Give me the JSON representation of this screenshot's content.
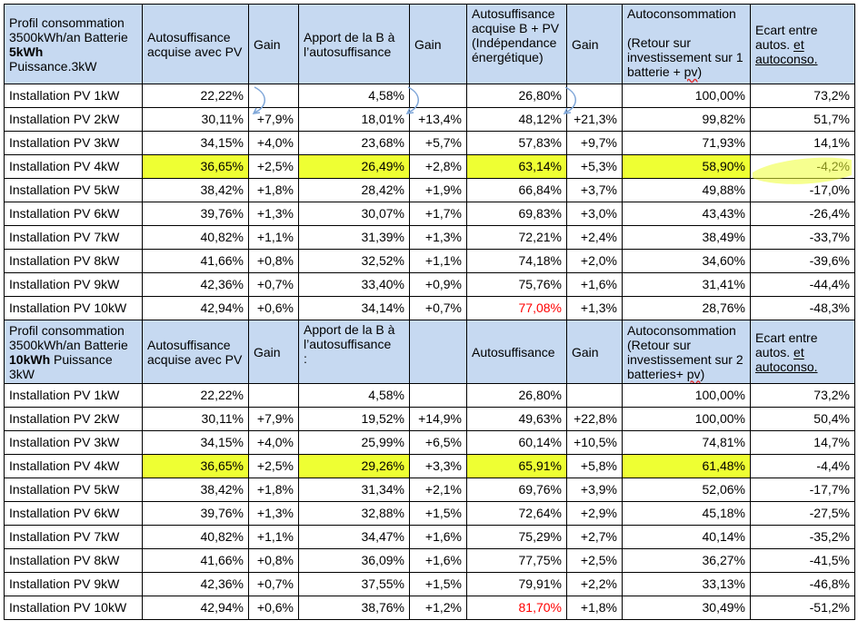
{
  "colors": {
    "header_bg": "#c6d9f1",
    "highlight": "#eeff33",
    "red": "#ff0000"
  },
  "section1": {
    "header": {
      "profile_line1": "Profil consommation",
      "profile_line2": "3500kWh/an Batterie",
      "profile_battery": "5kWh",
      "profile_power": "Puissance.3kW",
      "col_autosuff": "Autosuffisance acquise avec PV",
      "col_gain": "Gain",
      "col_apport": "Apport de la B à l’autosuffisance",
      "col_gain2": "Gain",
      "col_autosuff_bpv": "Autosuffisance acquise B + PV (Indépendance énergétique)",
      "col_gain3": "Gain",
      "col_autoconso_title": "Autoconsommation",
      "col_autoconso_sub1": "(Retour sur investissement sur 1 batterie + ",
      "col_autoconso_sub2": "pv",
      "col_autoconso_sub3": ")",
      "col_ecart1": "Ecart entre autos. ",
      "col_ecart2": "et",
      "col_ecart3": " autoconso."
    },
    "rows": [
      [
        "Installation PV 1kW",
        "22,22%",
        "",
        "4,58%",
        "",
        "26,80%",
        "",
        "100,00%",
        "73,2%"
      ],
      [
        "Installation PV 2kW",
        "30,11%",
        "+7,9%",
        "18,01%",
        "+13,4%",
        "48,12%",
        "+21,3%",
        "99,82%",
        "51,7%"
      ],
      [
        "Installation PV 3kW",
        "34,15%",
        "+4,0%",
        "23,68%",
        "+5,7%",
        "57,83%",
        "+9,7%",
        "71,93%",
        "14,1%"
      ],
      [
        "Installation PV 4kW",
        "36,65%",
        "+2,5%",
        "26,49%",
        "+2,8%",
        "63,14%",
        "+5,3%",
        "58,90%",
        "-4,2%"
      ],
      [
        "Installation PV 5kW",
        "38,42%",
        "+1,8%",
        "28,42%",
        "+1,9%",
        "66,84%",
        "+3,7%",
        "49,88%",
        "-17,0%"
      ],
      [
        "Installation PV 6kW",
        "39,76%",
        "+1,3%",
        "30,07%",
        "+1,7%",
        "69,83%",
        "+3,0%",
        "43,43%",
        "-26,4%"
      ],
      [
        "Installation PV 7kW",
        "40,82%",
        "+1,1%",
        "31,39%",
        "+1,3%",
        "72,21%",
        "+2,4%",
        "38,49%",
        "-33,7%"
      ],
      [
        "Installation PV 8kW",
        "41,66%",
        "+0,8%",
        "32,52%",
        "+1,1%",
        "74,18%",
        "+2,0%",
        "34,60%",
        "-39,6%"
      ],
      [
        "Installation PV 9kW",
        "42,36%",
        "+0,7%",
        "33,40%",
        "+0,9%",
        "75,76%",
        "+1,6%",
        "31,41%",
        "-44,4%"
      ],
      [
        "Installation PV 10kW",
        "42,94%",
        "+0,6%",
        "34,14%",
        "+0,7%",
        "77,08%",
        "+1,3%",
        "28,76%",
        "-48,3%"
      ]
    ]
  },
  "section2": {
    "header": {
      "profile_line1": "Profil consommation",
      "profile_line2": "3500kWh/an Batterie",
      "profile_battery": "10kWh",
      "profile_power": " Puissance 3kW",
      "col_autosuff": "Autosuffisance acquise avec PV",
      "col_gain": "Gain",
      "col_apport": "Apport de la B à l’autosuffisance",
      "col_apport_mark": ":",
      "col_autosuff_b": "Autosuffisance",
      "col_gain3": "Gain",
      "col_autoconso_title": "Autoconsommation",
      "col_autoconso_sub1": "(Retour sur investissement sur 2 batteries+ ",
      "col_autoconso_sub2": "pv",
      "col_autoconso_sub3": ")",
      "col_ecart1": "Ecart entre autos. ",
      "col_ecart2": "et",
      "col_ecart3": " autoconso."
    },
    "rows": [
      [
        "Installation PV 1kW",
        "22,22%",
        "",
        "4,58%",
        "",
        "26,80%",
        "",
        "100,00%",
        "73,2%"
      ],
      [
        "Installation PV 2kW",
        "30,11%",
        "+7,9%",
        "19,52%",
        "+14,9%",
        "49,63%",
        "+22,8%",
        "100,00%",
        "50,4%"
      ],
      [
        "Installation PV 3kW",
        "34,15%",
        "+4,0%",
        "25,99%",
        "+6,5%",
        "60,14%",
        "+10,5%",
        "74,81%",
        "14,7%"
      ],
      [
        "Installation PV 4kW",
        "36,65%",
        "+2,5%",
        "29,26%",
        "+3,3%",
        "65,91%",
        "+5,8%",
        "61,48%",
        "-4,4%"
      ],
      [
        "Installation PV 5kW",
        "38,42%",
        "+1,8%",
        "31,34%",
        "+2,1%",
        "69,76%",
        "+3,9%",
        "52,06%",
        "-17,7%"
      ],
      [
        "Installation PV 6kW",
        "39,76%",
        "+1,3%",
        "32,88%",
        "+1,5%",
        "72,64%",
        "+2,9%",
        "45,18%",
        "-27,5%"
      ],
      [
        "Installation PV 7kW",
        "40,82%",
        "+1,1%",
        "34,47%",
        "+1,6%",
        "75,29%",
        "+2,7%",
        "40,14%",
        "-35,2%"
      ],
      [
        "Installation PV 8kW",
        "41,66%",
        "+0,8%",
        "36,09%",
        "+1,6%",
        "77,75%",
        "+2,5%",
        "36,27%",
        "-41,5%"
      ],
      [
        "Installation PV 9kW",
        "42,36%",
        "+0,7%",
        "37,55%",
        "+1,5%",
        "79,91%",
        "+2,2%",
        "33,13%",
        "-46,8%"
      ],
      [
        "Installation PV 10kW",
        "42,94%",
        "+0,6%",
        "38,76%",
        "+1,2%",
        "81,70%",
        "+1,8%",
        "30,49%",
        "-51,2%"
      ]
    ]
  }
}
